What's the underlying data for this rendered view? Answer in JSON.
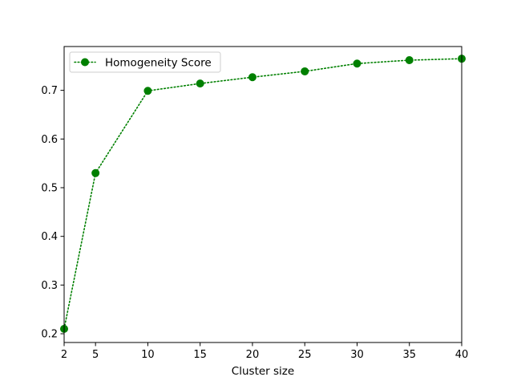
{
  "chart_data": {
    "type": "line",
    "xlabel": "Cluster size",
    "ylabel": "",
    "x_ticks": [
      2,
      5,
      10,
      15,
      20,
      25,
      30,
      35,
      40
    ],
    "y_ticks": [
      0.2,
      0.3,
      0.4,
      0.5,
      0.6,
      0.7
    ],
    "xlim": [
      2,
      40
    ],
    "ylim": [
      0.182,
      0.79
    ],
    "grid": false,
    "legend_position": "top-left",
    "series": [
      {
        "name": "Homogeneity Score",
        "color": "#008000",
        "line_style": "dotted",
        "marker": "circle",
        "x": [
          2,
          5,
          10,
          15,
          20,
          25,
          30,
          35,
          40
        ],
        "y": [
          0.21,
          0.53,
          0.699,
          0.714,
          0.727,
          0.739,
          0.755,
          0.762,
          0.765
        ]
      }
    ]
  }
}
